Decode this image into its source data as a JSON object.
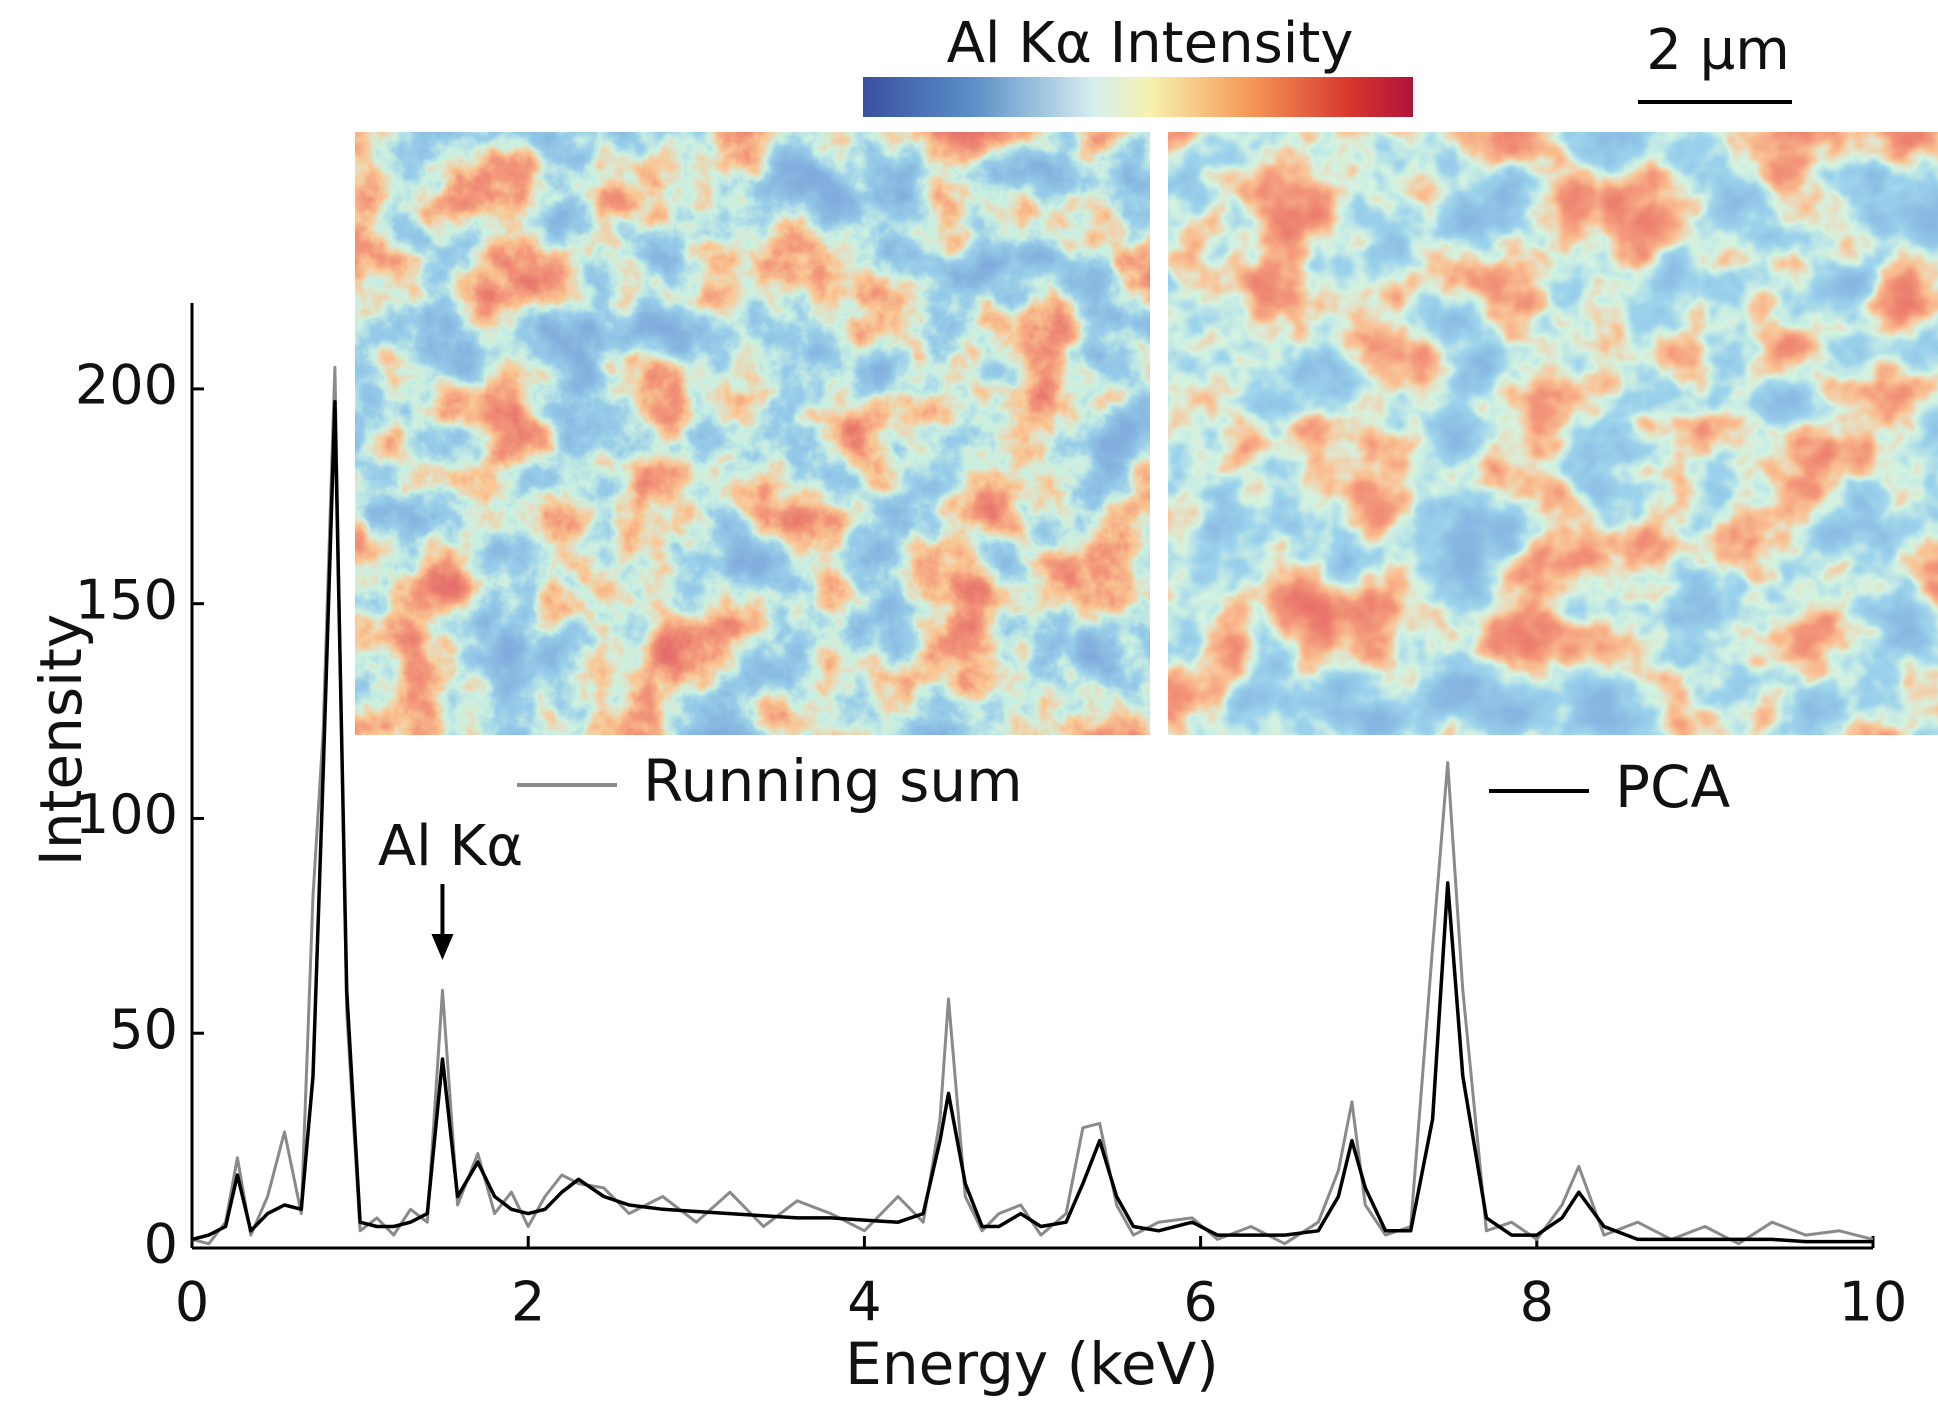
{
  "chart_data": {
    "type": "line",
    "x_label": "Energy (keV)",
    "y_label": "Intensity",
    "x": [
      0,
      0.1,
      0.2,
      0.27,
      0.35,
      0.45,
      0.55,
      0.65,
      0.72,
      0.78,
      0.85,
      0.92,
      1.0,
      1.1,
      1.2,
      1.3,
      1.4,
      1.49,
      1.58,
      1.7,
      1.8,
      1.9,
      2.0,
      2.1,
      2.2,
      2.3,
      2.45,
      2.6,
      2.8,
      3.0,
      3.2,
      3.4,
      3.6,
      3.8,
      4.0,
      4.2,
      4.35,
      4.45,
      4.5,
      4.6,
      4.7,
      4.8,
      4.93,
      5.05,
      5.2,
      5.3,
      5.4,
      5.5,
      5.6,
      5.75,
      5.95,
      6.1,
      6.3,
      6.5,
      6.7,
      6.82,
      6.9,
      6.98,
      7.1,
      7.25,
      7.38,
      7.47,
      7.56,
      7.7,
      7.85,
      8.0,
      8.15,
      8.25,
      8.4,
      8.6,
      8.8,
      9.0,
      9.2,
      9.4,
      9.6,
      9.8,
      10
    ],
    "series": [
      {
        "name": "Running sum",
        "color": "#8a8a8a",
        "values": [
          2,
          1,
          6,
          21,
          3,
          12,
          27,
          8,
          82,
          120,
          205,
          55,
          4,
          7,
          3,
          9,
          6,
          60,
          10,
          22,
          8,
          13,
          5,
          12,
          17,
          15,
          14,
          8,
          12,
          6,
          13,
          5,
          11,
          8,
          4,
          12,
          6,
          30,
          58,
          12,
          4,
          8,
          10,
          3,
          8,
          28,
          29,
          10,
          3,
          6,
          7,
          2,
          5,
          1,
          6,
          18,
          34,
          10,
          3,
          5,
          70,
          113,
          60,
          4,
          6,
          2,
          10,
          19,
          3,
          6,
          2,
          5,
          1,
          6,
          3,
          4,
          2
        ]
      },
      {
        "name": "PCA",
        "color": "#000000",
        "values": [
          2,
          3,
          5,
          17,
          4,
          8,
          10,
          9,
          40,
          110,
          197,
          60,
          6,
          5,
          5,
          6,
          8,
          44,
          12,
          20,
          12,
          9,
          8,
          9,
          13,
          16,
          12,
          10,
          9,
          8.5,
          8,
          7.5,
          7,
          7,
          6.5,
          6,
          8,
          25,
          36,
          15,
          5,
          5,
          8,
          5,
          6,
          15,
          25,
          12,
          5,
          4,
          6,
          3,
          3,
          3,
          4,
          12,
          25,
          14,
          4,
          4,
          30,
          85,
          40,
          7,
          3,
          3,
          7,
          13,
          5,
          2,
          2,
          2,
          2,
          2,
          1.5,
          1.5,
          1.5
        ]
      }
    ],
    "xlim": [
      0,
      10
    ],
    "xticks": [
      0,
      2,
      4,
      6,
      8,
      10
    ],
    "ylim": [
      0,
      220
    ],
    "yticks": [
      0,
      50,
      100,
      150,
      200
    ],
    "annotation": {
      "text": "Al Kα",
      "x": 1.49
    },
    "colorbar_label": "Al Kα Intensity",
    "scale_bar": "2 µm"
  }
}
